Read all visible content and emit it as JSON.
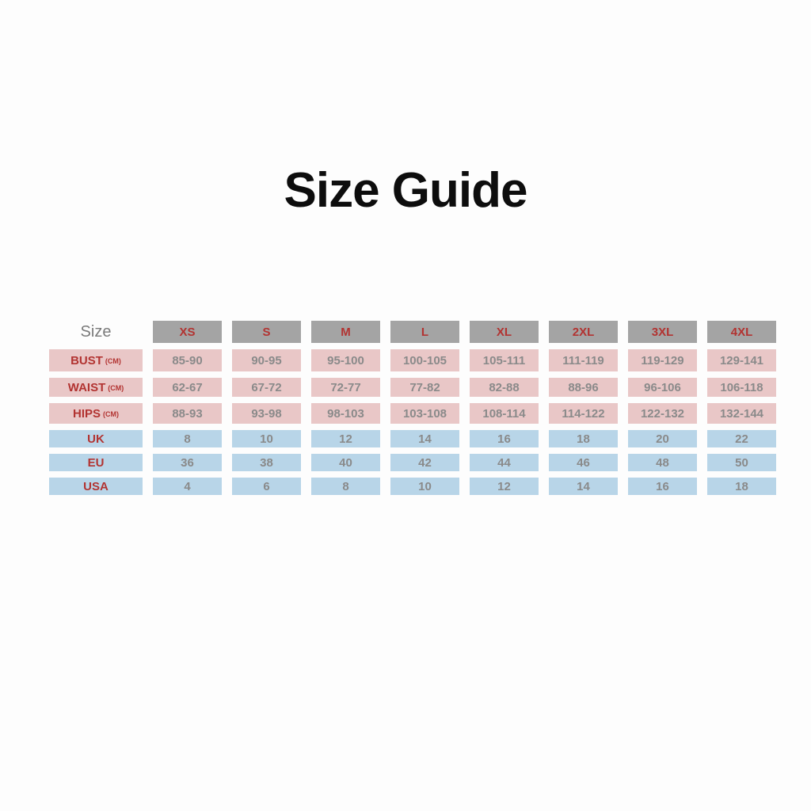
{
  "page": {
    "title": "Size Guide"
  },
  "colors": {
    "background": "#fdfdfd",
    "title_black": "#0d0d0d",
    "header_bg": "#a4a4a4",
    "measurement_row_bg": "#e9c7c7",
    "size_row_bg": "#b8d5e8",
    "accent_red": "#b23331",
    "value_gray": "#8a8a8a",
    "corner_gray": "#7a7a7a"
  },
  "chart_data": {
    "type": "table",
    "title": "Size Guide",
    "corner_label": "Size",
    "columns": [
      "XS",
      "S",
      "M",
      "L",
      "XL",
      "2XL",
      "3XL",
      "4XL"
    ],
    "rows": [
      {
        "label": "BUST",
        "unit": "(CM)",
        "group": "measurement",
        "values": [
          "85-90",
          "90-95",
          "95-100",
          "100-105",
          "105-111",
          "111-119",
          "119-129",
          "129-141"
        ]
      },
      {
        "label": "WAIST",
        "unit": "(CM)",
        "group": "measurement",
        "values": [
          "62-67",
          "67-72",
          "72-77",
          "77-82",
          "82-88",
          "88-96",
          "96-106",
          "106-118"
        ]
      },
      {
        "label": "HIPS",
        "unit": "(CM)",
        "group": "measurement",
        "values": [
          "88-93",
          "93-98",
          "98-103",
          "103-108",
          "108-114",
          "114-122",
          "122-132",
          "132-144"
        ]
      },
      {
        "label": "UK",
        "unit": "",
        "group": "size",
        "values": [
          "8",
          "10",
          "12",
          "14",
          "16",
          "18",
          "20",
          "22"
        ]
      },
      {
        "label": "EU",
        "unit": "",
        "group": "size",
        "values": [
          "36",
          "38",
          "40",
          "42",
          "44",
          "46",
          "48",
          "50"
        ]
      },
      {
        "label": "USA",
        "unit": "",
        "group": "size",
        "values": [
          "4",
          "6",
          "8",
          "10",
          "12",
          "14",
          "16",
          "18"
        ]
      }
    ]
  }
}
